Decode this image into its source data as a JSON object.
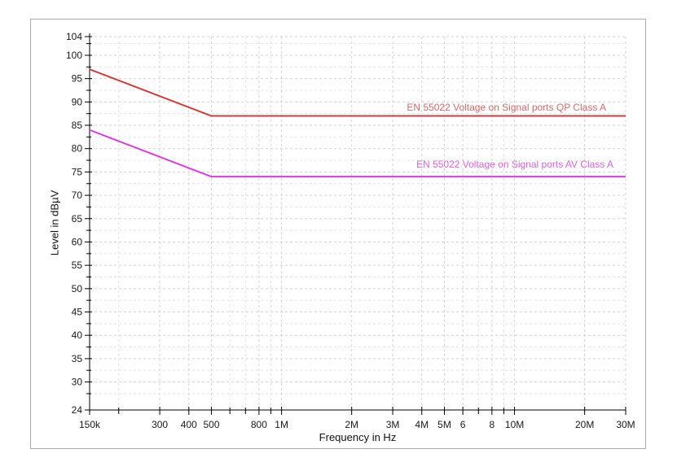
{
  "window": {
    "background": "#ffffff",
    "panel_border": "#a9a9a9"
  },
  "chart_data": {
    "type": "line",
    "title": "",
    "xlabel": "Frequency in Hz",
    "ylabel": "Level in dBµV",
    "x_scale": "log",
    "xlim": [
      150000,
      30000000
    ],
    "ylim": [
      24,
      104
    ],
    "grid": true,
    "legend_position": "labels-above-lines",
    "grid_colors": {
      "major": "#d3d3d3",
      "minor": "#e4e4e4"
    },
    "axis_color": "#000000",
    "text_color": "#1a1a1a",
    "x_ticks": [
      {
        "value": 150000,
        "label": "150k"
      },
      {
        "value": 200000,
        "label": ""
      },
      {
        "value": 300000,
        "label": "300"
      },
      {
        "value": 400000,
        "label": "400"
      },
      {
        "value": 500000,
        "label": "500"
      },
      {
        "value": 600000,
        "label": ""
      },
      {
        "value": 700000,
        "label": ""
      },
      {
        "value": 800000,
        "label": "800"
      },
      {
        "value": 900000,
        "label": ""
      },
      {
        "value": 1000000,
        "label": "1M"
      },
      {
        "value": 2000000,
        "label": "2M"
      },
      {
        "value": 3000000,
        "label": "3M"
      },
      {
        "value": 4000000,
        "label": "4M"
      },
      {
        "value": 5000000,
        "label": "5M"
      },
      {
        "value": 6000000,
        "label": "6"
      },
      {
        "value": 7000000,
        "label": ""
      },
      {
        "value": 8000000,
        "label": "8"
      },
      {
        "value": 9000000,
        "label": ""
      },
      {
        "value": 10000000,
        "label": "10M"
      },
      {
        "value": 20000000,
        "label": "20M"
      },
      {
        "value": 30000000,
        "label": "30M"
      }
    ],
    "y_ticks_major": [
      104,
      100,
      95,
      90,
      85,
      80,
      75,
      70,
      65,
      60,
      55,
      50,
      45,
      40,
      35,
      30,
      24
    ],
    "y_ticks_minor": [
      102.5,
      97.5,
      92.5,
      87.5,
      82.5,
      77.5,
      72.5,
      67.5,
      62.5,
      57.5,
      52.5,
      47.5,
      42.5,
      37.5,
      32.5,
      27.5
    ],
    "series": [
      {
        "name": "EN 55022 Voltage on Signal ports QP Class A",
        "color": "#d23c3c",
        "label_color": "#d66a6a",
        "points": [
          [
            150000,
            97
          ],
          [
            500000,
            87
          ],
          [
            30000000,
            87
          ]
        ]
      },
      {
        "name": "EN 55022 Voltage on Signal ports AV Class A",
        "color": "#de3ade",
        "label_color": "#db63db",
        "points": [
          [
            150000,
            84
          ],
          [
            500000,
            74
          ],
          [
            30000000,
            74
          ]
        ]
      }
    ]
  }
}
